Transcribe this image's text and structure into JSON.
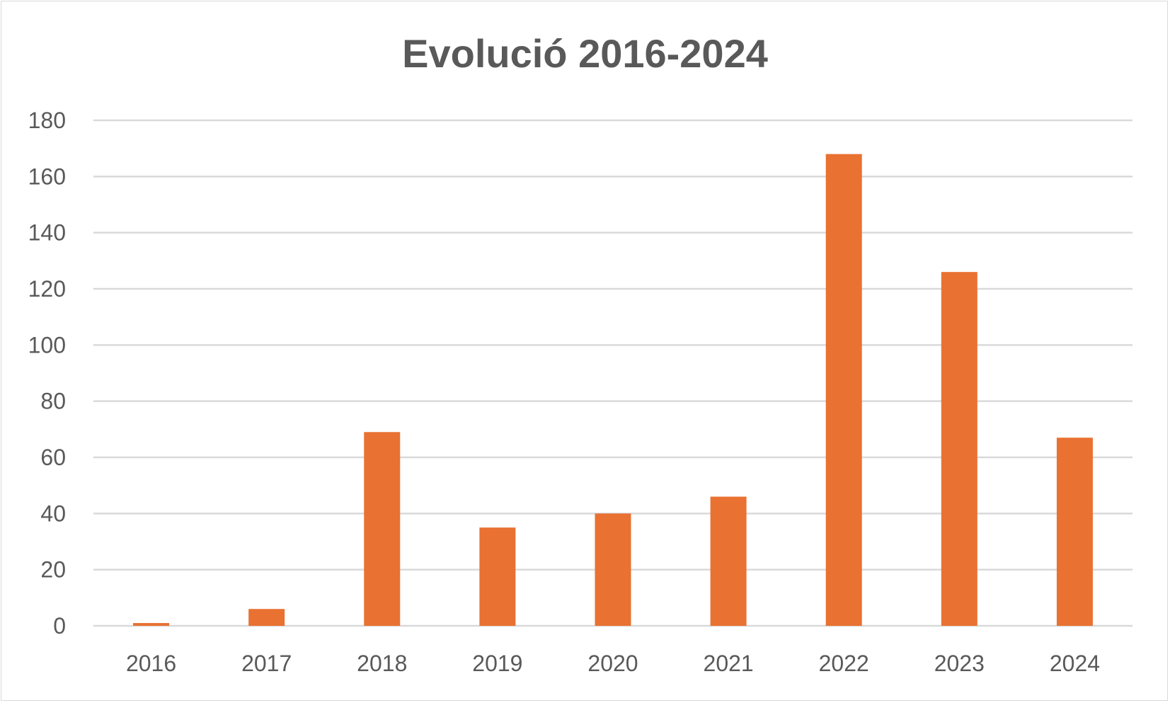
{
  "chart_data": {
    "type": "bar",
    "title": "Evolució 2016-2024",
    "xlabel": "",
    "ylabel": "",
    "categories": [
      "2016",
      "2017",
      "2018",
      "2019",
      "2020",
      "2021",
      "2022",
      "2023",
      "2024"
    ],
    "series": [
      {
        "values": [
          1,
          6,
          69,
          35,
          40,
          46,
          168,
          126,
          67
        ],
        "color": "#E97132"
      }
    ],
    "ylim": [
      0,
      180
    ],
    "yticks": [
      0,
      20,
      40,
      60,
      80,
      100,
      120,
      140,
      160,
      180
    ],
    "grid": true,
    "legend": "none"
  },
  "colors": {
    "bar": "#E97132",
    "grid": "#d9d9d9",
    "text": "#595959"
  }
}
